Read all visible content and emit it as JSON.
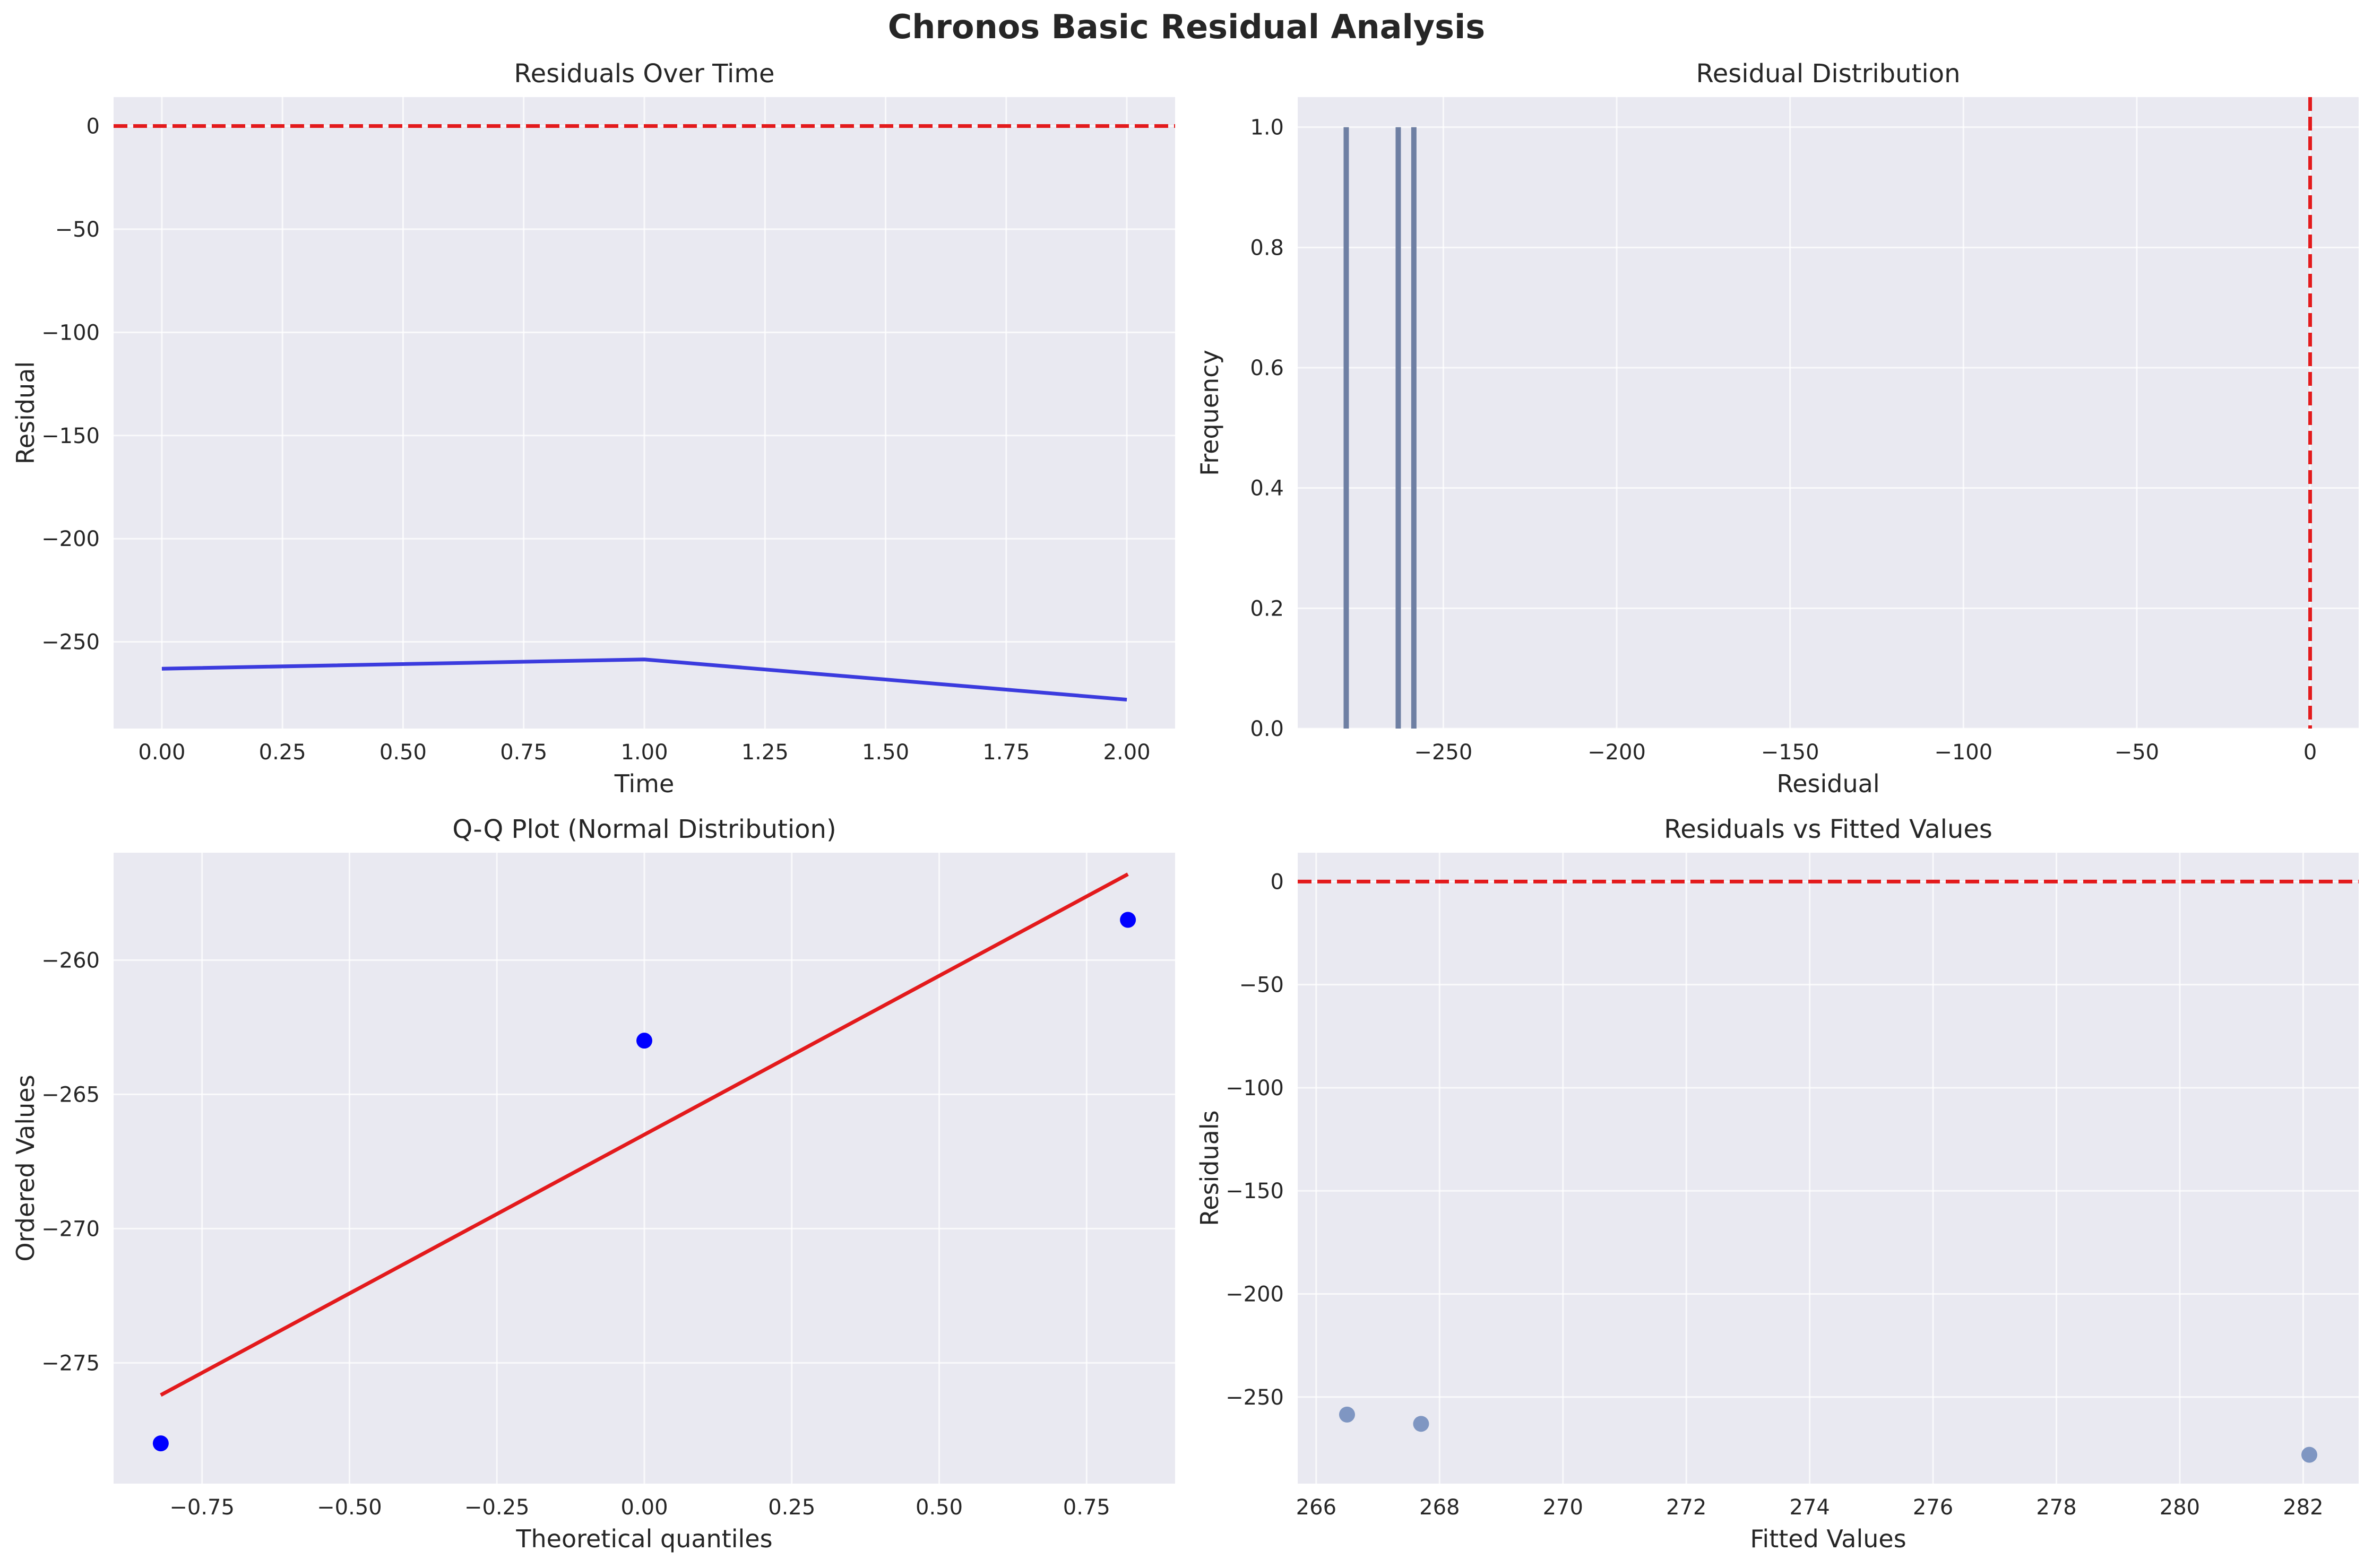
{
  "figure": {
    "title": "Chronos Basic Residual Analysis"
  },
  "chart_data": [
    {
      "id": "residuals_over_time",
      "type": "line",
      "title": "Residuals Over Time",
      "xlabel": "Time",
      "ylabel": "Residual",
      "xlim": [
        -0.1,
        2.1
      ],
      "ylim": [
        -292,
        14
      ],
      "xticks": [
        0.0,
        0.25,
        0.5,
        0.75,
        1.0,
        1.25,
        1.5,
        1.75,
        2.0
      ],
      "xtick_labels": [
        "0.00",
        "0.25",
        "0.50",
        "0.75",
        "1.00",
        "1.25",
        "1.50",
        "1.75",
        "2.00"
      ],
      "yticks": [
        0,
        -50,
        -100,
        -150,
        -200,
        -250
      ],
      "ytick_labels": [
        "0",
        "−50",
        "−100",
        "−150",
        "−200",
        "−250"
      ],
      "series": [
        {
          "x": [
            0,
            1,
            2
          ],
          "y": [
            -263,
            -258.5,
            -278
          ],
          "color": "#3b3bde"
        }
      ],
      "hlines": [
        {
          "y": 0,
          "color": "#e31a1c",
          "style": "dashed"
        }
      ]
    },
    {
      "id": "residual_distribution",
      "type": "bar",
      "title": "Residual Distribution",
      "xlabel": "Residual",
      "ylabel": "Frequency",
      "xlim": [
        -292,
        14
      ],
      "ylim": [
        0,
        1.05
      ],
      "xticks": [
        -250,
        -200,
        -150,
        -100,
        -50,
        0
      ],
      "xtick_labels": [
        "−250",
        "−200",
        "−150",
        "−100",
        "−50",
        "0"
      ],
      "yticks": [
        0.0,
        0.2,
        0.4,
        0.6,
        0.8,
        1.0
      ],
      "ytick_labels": [
        "0.0",
        "0.2",
        "0.4",
        "0.6",
        "0.8",
        "1.0"
      ],
      "bars": [
        {
          "x": -278,
          "height": 1
        },
        {
          "x": -263,
          "height": 1
        },
        {
          "x": -258.5,
          "height": 1
        }
      ],
      "bar_color": "#6e7fa3",
      "vlines": [
        {
          "x": 0,
          "color": "#e31a1c",
          "style": "dashed"
        }
      ]
    },
    {
      "id": "qq_plot",
      "type": "scatter",
      "title": "Q-Q Plot (Normal Distribution)",
      "xlabel": "Theoretical quantiles",
      "ylabel": "Ordered Values",
      "xlim": [
        -0.9,
        0.9
      ],
      "ylim": [
        -279.5,
        -256.0
      ],
      "xticks": [
        -0.75,
        -0.5,
        -0.25,
        0.0,
        0.25,
        0.5,
        0.75
      ],
      "xtick_labels": [
        "−0.75",
        "−0.50",
        "−0.25",
        "0.00",
        "0.25",
        "0.50",
        "0.75"
      ],
      "yticks": [
        -260,
        -265,
        -270,
        -275
      ],
      "ytick_labels": [
        "−260",
        "−265",
        "−270",
        "−275"
      ],
      "points": [
        {
          "x": -0.82,
          "y": -278
        },
        {
          "x": 0.0,
          "y": -263
        },
        {
          "x": 0.82,
          "y": -258.5
        }
      ],
      "point_color": "#0000ff",
      "fit_line": {
        "x": [
          -0.82,
          0.82
        ],
        "y": [
          -276.2,
          -256.8
        ],
        "color": "#e31a1c"
      }
    },
    {
      "id": "residuals_vs_fitted",
      "type": "scatter",
      "title": "Residuals vs Fitted Values",
      "xlabel": "Fitted Values",
      "ylabel": "Residuals",
      "xlim": [
        265.7,
        282.9
      ],
      "ylim": [
        -292,
        14
      ],
      "xticks": [
        266,
        268,
        270,
        272,
        274,
        276,
        278,
        280,
        282
      ],
      "xtick_labels": [
        "266",
        "268",
        "270",
        "272",
        "274",
        "276",
        "278",
        "280",
        "282"
      ],
      "yticks": [
        0,
        -50,
        -100,
        -150,
        -200,
        -250
      ],
      "ytick_labels": [
        "0",
        "−50",
        "−100",
        "−150",
        "−200",
        "−250"
      ],
      "points": [
        {
          "x": 266.5,
          "y": -258.5
        },
        {
          "x": 267.7,
          "y": -263
        },
        {
          "x": 282.1,
          "y": -278
        }
      ],
      "point_color": "#7f96c2",
      "hlines": [
        {
          "y": 0,
          "color": "#e31a1c",
          "style": "dashed"
        }
      ]
    }
  ]
}
